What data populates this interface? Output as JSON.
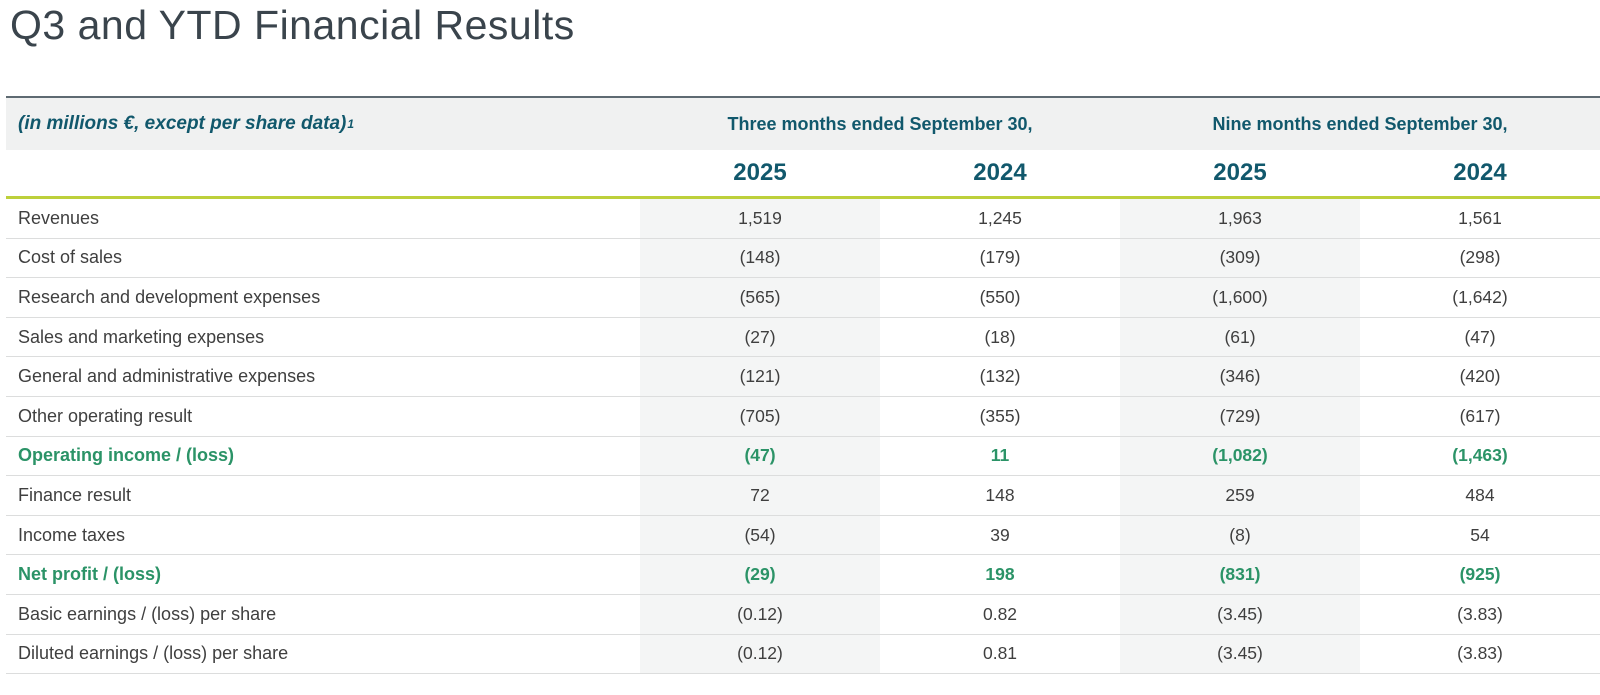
{
  "page": {
    "title": "Q3 and YTD Financial Results"
  },
  "colors": {
    "teal": "#11586c",
    "lime": "#bdd03b",
    "green": "#2b9367",
    "band_bg": "#f0f1f1",
    "stripe_bg": "#f4f5f5",
    "divider": "#dcdddd",
    "top_border": "#5e6a72",
    "title_text": "#3a444c",
    "body_text": "#3f3f3f"
  },
  "table": {
    "unit_note": "(in millions €, except per share data)",
    "unit_note_superscript": "1",
    "period_groups": [
      {
        "label": "Three months ended September 30,"
      },
      {
        "label": "Nine months ended September 30,"
      }
    ],
    "year_columns": [
      "2025",
      "2024",
      "2025",
      "2024"
    ],
    "rows": [
      {
        "label": "Revenues",
        "values": [
          "1,519",
          "1,245",
          "1,963",
          "1,561"
        ],
        "emphasis": false
      },
      {
        "label": "Cost of sales",
        "values": [
          "(148)",
          "(179)",
          "(309)",
          "(298)"
        ],
        "emphasis": false
      },
      {
        "label": "Research and development expenses",
        "values": [
          "(565)",
          "(550)",
          "(1,600)",
          "(1,642)"
        ],
        "emphasis": false
      },
      {
        "label": "Sales and marketing expenses",
        "values": [
          "(27)",
          "(18)",
          "(61)",
          "(47)"
        ],
        "emphasis": false
      },
      {
        "label": "General and administrative expenses",
        "values": [
          "(121)",
          "(132)",
          "(346)",
          "(420)"
        ],
        "emphasis": false
      },
      {
        "label": "Other operating result",
        "values": [
          "(705)",
          "(355)",
          "(729)",
          "(617)"
        ],
        "emphasis": false
      },
      {
        "label": "Operating income / (loss)",
        "values": [
          "(47)",
          "11",
          "(1,082)",
          "(1,463)"
        ],
        "emphasis": true
      },
      {
        "label": "Finance result",
        "values": [
          "72",
          "148",
          "259",
          "484"
        ],
        "emphasis": false
      },
      {
        "label": "Income taxes",
        "values": [
          "(54)",
          "39",
          "(8)",
          "54"
        ],
        "emphasis": false
      },
      {
        "label": "Net profit / (loss)",
        "values": [
          "(29)",
          "198",
          "(831)",
          "(925)"
        ],
        "emphasis": true
      },
      {
        "label": "Basic earnings / (loss) per share",
        "values": [
          "(0.12)",
          "0.82",
          "(3.45)",
          "(3.83)"
        ],
        "emphasis": false
      },
      {
        "label": "Diluted earnings / (loss) per share",
        "values": [
          "(0.12)",
          "0.81",
          "(3.45)",
          "(3.83)"
        ],
        "emphasis": false
      }
    ]
  }
}
